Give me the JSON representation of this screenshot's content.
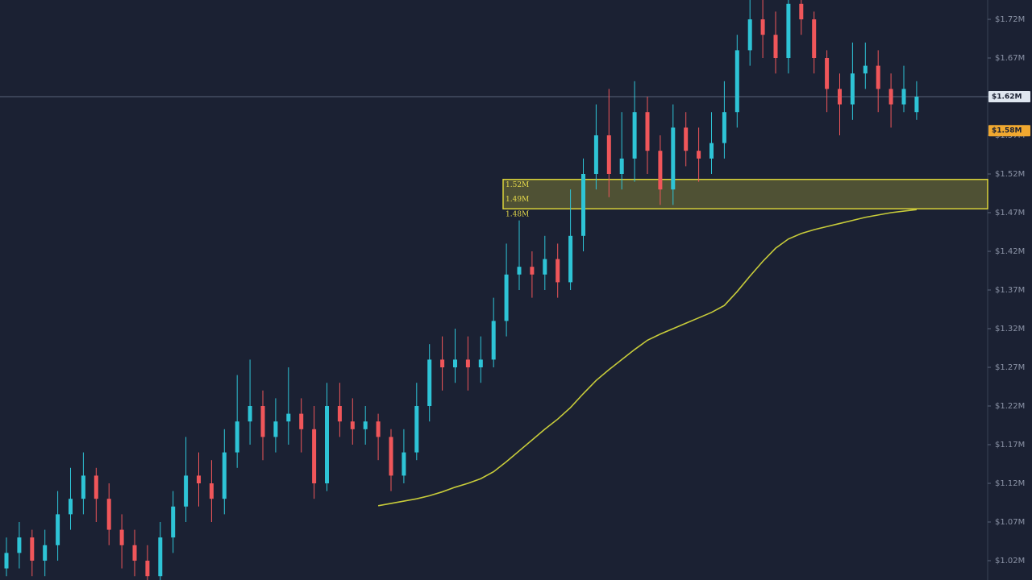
{
  "chart_data": {
    "type": "candlestick",
    "up_color": "#2ec4d6",
    "down_color": "#f0565a",
    "open": [
      1.01,
      1.03,
      1.05,
      1.02,
      1.04,
      1.08,
      1.1,
      1.13,
      1.1,
      1.06,
      1.04,
      1.02,
      1.0,
      1.05,
      1.09,
      1.13,
      1.12,
      1.1,
      1.16,
      1.2,
      1.22,
      1.18,
      1.2,
      1.21,
      1.19,
      1.12,
      1.22,
      1.2,
      1.19,
      1.2,
      1.18,
      1.13,
      1.16,
      1.22,
      1.28,
      1.27,
      1.28,
      1.27,
      1.28,
      1.33,
      1.39,
      1.4,
      1.39,
      1.41,
      1.38,
      1.44,
      1.52,
      1.57,
      1.52,
      1.54,
      1.6,
      1.55,
      1.5,
      1.58,
      1.55,
      1.54,
      1.56,
      1.6,
      1.68,
      1.72,
      1.7,
      1.67,
      1.74,
      1.72,
      1.67,
      1.63,
      1.61,
      1.65,
      1.66,
      1.63,
      1.61,
      1.6
    ],
    "high": [
      1.05,
      1.07,
      1.06,
      1.06,
      1.11,
      1.14,
      1.16,
      1.14,
      1.12,
      1.08,
      1.06,
      1.04,
      1.07,
      1.11,
      1.18,
      1.16,
      1.15,
      1.19,
      1.26,
      1.28,
      1.24,
      1.23,
      1.27,
      1.23,
      1.22,
      1.25,
      1.25,
      1.23,
      1.22,
      1.21,
      1.19,
      1.19,
      1.25,
      1.3,
      1.31,
      1.32,
      1.31,
      1.31,
      1.36,
      1.43,
      1.46,
      1.42,
      1.44,
      1.43,
      1.5,
      1.54,
      1.61,
      1.63,
      1.6,
      1.64,
      1.62,
      1.57,
      1.61,
      1.6,
      1.58,
      1.6,
      1.64,
      1.7,
      1.76,
      1.75,
      1.73,
      1.77,
      1.77,
      1.73,
      1.68,
      1.65,
      1.69,
      1.69,
      1.68,
      1.65,
      1.66,
      1.64
    ],
    "low": [
      1.0,
      1.01,
      1.0,
      1.0,
      1.02,
      1.06,
      1.08,
      1.07,
      1.04,
      1.01,
      1.0,
      0.99,
      0.99,
      1.03,
      1.07,
      1.09,
      1.07,
      1.08,
      1.14,
      1.17,
      1.15,
      1.16,
      1.17,
      1.16,
      1.1,
      1.11,
      1.18,
      1.17,
      1.17,
      1.15,
      1.11,
      1.12,
      1.15,
      1.2,
      1.24,
      1.25,
      1.24,
      1.25,
      1.27,
      1.31,
      1.37,
      1.36,
      1.37,
      1.36,
      1.37,
      1.42,
      1.5,
      1.49,
      1.5,
      1.51,
      1.52,
      1.48,
      1.48,
      1.53,
      1.51,
      1.52,
      1.54,
      1.58,
      1.66,
      1.67,
      1.65,
      1.65,
      1.7,
      1.65,
      1.6,
      1.57,
      1.59,
      1.63,
      1.6,
      1.58,
      1.6,
      1.59
    ],
    "close": [
      1.03,
      1.05,
      1.02,
      1.04,
      1.08,
      1.1,
      1.13,
      1.1,
      1.06,
      1.04,
      1.02,
      1.0,
      1.05,
      1.09,
      1.13,
      1.12,
      1.1,
      1.16,
      1.2,
      1.22,
      1.18,
      1.2,
      1.21,
      1.19,
      1.12,
      1.22,
      1.2,
      1.19,
      1.2,
      1.18,
      1.13,
      1.16,
      1.22,
      1.28,
      1.27,
      1.28,
      1.27,
      1.28,
      1.33,
      1.39,
      1.4,
      1.39,
      1.41,
      1.38,
      1.44,
      1.52,
      1.57,
      1.52,
      1.54,
      1.6,
      1.55,
      1.5,
      1.58,
      1.55,
      1.54,
      1.56,
      1.6,
      1.68,
      1.72,
      1.7,
      1.67,
      1.74,
      1.72,
      1.67,
      1.63,
      1.61,
      1.65,
      1.66,
      1.63,
      1.61,
      1.63,
      1.62
    ],
    "ma": {
      "color": "#c8cc3a",
      "values": [
        null,
        null,
        null,
        null,
        null,
        null,
        null,
        null,
        null,
        null,
        null,
        null,
        null,
        null,
        null,
        null,
        null,
        null,
        null,
        null,
        null,
        null,
        null,
        null,
        null,
        null,
        null,
        null,
        null,
        1.091,
        1.094,
        1.097,
        1.1,
        1.104,
        1.109,
        1.115,
        1.12,
        1.126,
        1.135,
        1.148,
        1.162,
        1.176,
        1.19,
        1.203,
        1.218,
        1.236,
        1.253,
        1.267,
        1.28,
        1.293,
        1.305,
        1.313,
        1.32,
        1.327,
        1.334,
        1.341,
        1.35,
        1.368,
        1.388,
        1.407,
        1.424,
        1.436,
        1.443,
        1.448,
        1.452,
        1.456,
        1.46,
        1.464,
        1.467,
        1.47,
        1.472,
        1.474
      ]
    },
    "zone": {
      "low": 1.475,
      "high": 1.513,
      "color": "#d9d23a",
      "labels": [
        "1.52M",
        "1.49M",
        "1.48M"
      ]
    },
    "price_tags": [
      {
        "value": 1.62,
        "label": "$1.62M",
        "color": "#dfe6f0"
      },
      {
        "value": 1.576,
        "label": "$1.58M",
        "color": "#f0a830"
      }
    ],
    "price_line": true,
    "ylim": [
      0.995,
      1.745
    ],
    "yticks": [
      {
        "value": 1.72,
        "label": "$1.72M"
      },
      {
        "value": 1.67,
        "label": "$1.67M"
      },
      {
        "value": 1.62,
        "label": "$1.62M"
      },
      {
        "value": 1.57,
        "label": "$1.57M"
      },
      {
        "value": 1.52,
        "label": "$1.52M"
      },
      {
        "value": 1.47,
        "label": "$1.47M"
      },
      {
        "value": 1.42,
        "label": "$1.42M"
      },
      {
        "value": 1.37,
        "label": "$1.37M"
      },
      {
        "value": 1.32,
        "label": "$1.32M"
      },
      {
        "value": 1.27,
        "label": "$1.27M"
      },
      {
        "value": 1.22,
        "label": "$1.22M"
      },
      {
        "value": 1.17,
        "label": "$1.17M"
      },
      {
        "value": 1.12,
        "label": "$1.12M"
      },
      {
        "value": 1.07,
        "label": "$1.07M"
      },
      {
        "value": 1.02,
        "label": "$1.02M"
      }
    ],
    "grid": false
  }
}
